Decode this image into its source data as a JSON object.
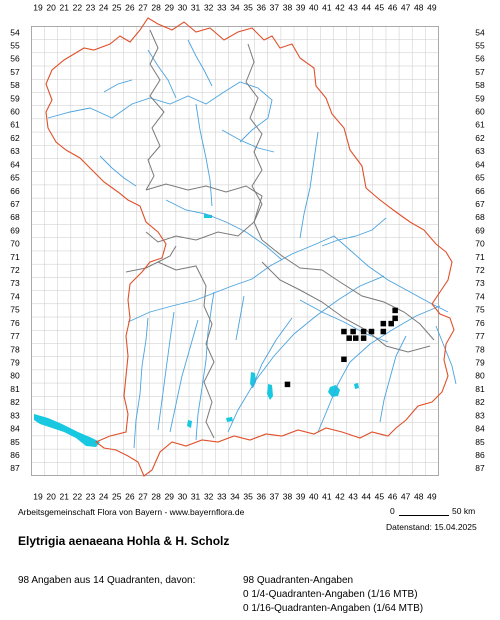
{
  "map": {
    "col_labels": [
      "19",
      "20",
      "21",
      "22",
      "23",
      "24",
      "25",
      "26",
      "27",
      "28",
      "29",
      "30",
      "31",
      "32",
      "33",
      "34",
      "35",
      "36",
      "37",
      "38",
      "39",
      "40",
      "41",
      "42",
      "43",
      "44",
      "45",
      "46",
      "47",
      "48",
      "49"
    ],
    "row_labels": [
      "54",
      "55",
      "56",
      "57",
      "58",
      "59",
      "60",
      "61",
      "62",
      "63",
      "64",
      "65",
      "66",
      "67",
      "68",
      "69",
      "70",
      "71",
      "72",
      "73",
      "74",
      "75",
      "76",
      "77",
      "78",
      "79",
      "80",
      "81",
      "82",
      "83",
      "84",
      "85",
      "86",
      "87"
    ],
    "colors": {
      "state_border": "#e0502a",
      "district_border": "#7a7a7a",
      "rivers": "#4aa3df",
      "lakes": "#18c8e0",
      "occurrence": "#000000",
      "grid": "#c8c8c8"
    },
    "occurrences": [
      {
        "col": 46.2,
        "row": 75.0
      },
      {
        "col": 46.2,
        "row": 75.6
      },
      {
        "col": 45.3,
        "row": 76.0
      },
      {
        "col": 45.9,
        "row": 76.0
      },
      {
        "col": 42.3,
        "row": 76.6
      },
      {
        "col": 43.0,
        "row": 76.6
      },
      {
        "col": 43.8,
        "row": 76.6
      },
      {
        "col": 44.4,
        "row": 76.6
      },
      {
        "col": 45.3,
        "row": 76.6
      },
      {
        "col": 42.7,
        "row": 77.1
      },
      {
        "col": 43.2,
        "row": 77.1
      },
      {
        "col": 43.8,
        "row": 77.1
      },
      {
        "col": 42.3,
        "row": 78.7
      },
      {
        "col": 38.0,
        "row": 80.6
      }
    ]
  },
  "credit": "Arbeitsgemeinschaft Flora von Bayern - www.bayernflora.de",
  "scale": {
    "start": "0",
    "end": "50 km"
  },
  "date_label": "Datenstand: 15.04.2025",
  "species": "Elytrigia aenaeana Hohla & H. Scholz",
  "summary": {
    "counts": "98 Angaben aus 14 Quadranten, davon:",
    "line1": "98 Quadranten-Angaben",
    "line2": "0 1/4-Quadranten-Angaben (1/16 MTB)",
    "line3": "0 1/16-Quadranten-Angaben (1/64 MTB)"
  }
}
